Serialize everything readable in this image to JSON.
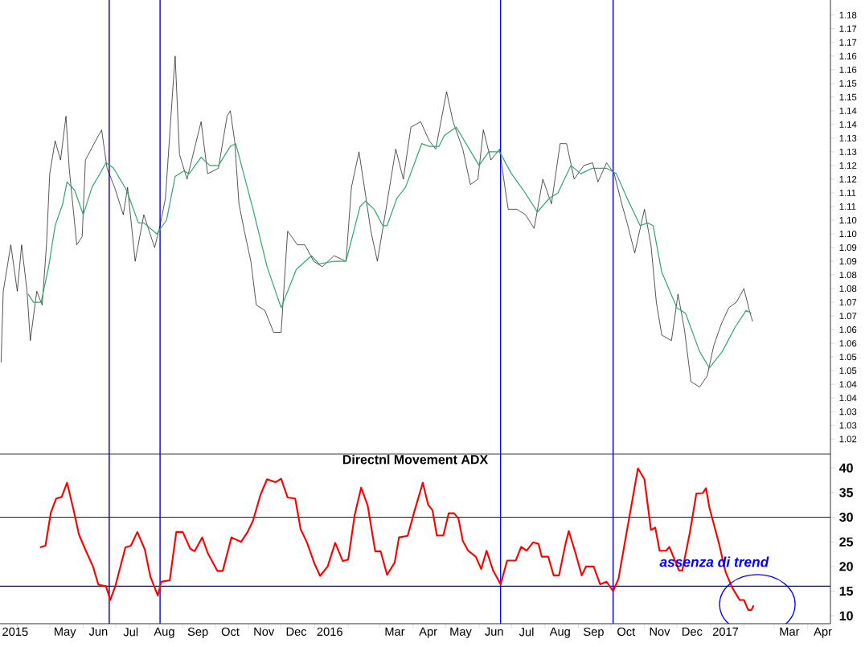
{
  "chart_data": [
    {
      "type": "line",
      "xlim": [
        "2015-03-16",
        "2017-04-22"
      ],
      "ylim": [
        1.0195,
        1.1855
      ],
      "tick_labels": "y",
      "yticks": [
        {
          "value": 1.18,
          "label": "1.18"
        },
        {
          "value": 1.175,
          "label": "1.17"
        },
        {
          "value": 1.17,
          "label": "1.17"
        },
        {
          "value": 1.165,
          "label": "1.16"
        },
        {
          "value": 1.16,
          "label": "1.16"
        },
        {
          "value": 1.155,
          "label": "1.15"
        },
        {
          "value": 1.15,
          "label": "1.15"
        },
        {
          "value": 1.145,
          "label": "1.14"
        },
        {
          "value": 1.14,
          "label": "1.14"
        },
        {
          "value": 1.135,
          "label": "1.13"
        },
        {
          "value": 1.13,
          "label": "1.13"
        },
        {
          "value": 1.125,
          "label": "1.12"
        },
        {
          "value": 1.12,
          "label": "1.12"
        },
        {
          "value": 1.115,
          "label": "1.11"
        },
        {
          "value": 1.11,
          "label": "1.11"
        },
        {
          "value": 1.105,
          "label": "1.10"
        },
        {
          "value": 1.1,
          "label": "1.10"
        },
        {
          "value": 1.095,
          "label": "1.09"
        },
        {
          "value": 1.09,
          "label": "1.09"
        },
        {
          "value": 1.085,
          "label": "1.08"
        },
        {
          "value": 1.08,
          "label": "1.08"
        },
        {
          "value": 1.075,
          "label": "1.07"
        },
        {
          "value": 1.07,
          "label": "1.07"
        },
        {
          "value": 1.065,
          "label": "1.06"
        },
        {
          "value": 1.06,
          "label": "1.06"
        },
        {
          "value": 1.055,
          "label": "1.05"
        },
        {
          "value": 1.05,
          "label": "1.05"
        },
        {
          "value": 1.045,
          "label": "1.04"
        },
        {
          "value": 1.04,
          "label": "1.04"
        },
        {
          "value": 1.035,
          "label": "1.03"
        },
        {
          "value": 1.03,
          "label": "1.03"
        },
        {
          "value": 1.025,
          "label": "1.02"
        }
      ],
      "series": [
        {
          "color": "#000000",
          "x": [
            "2015-03-17",
            "2015-03-19",
            "2015-03-26",
            "2015-04-01",
            "2015-04-05",
            "2015-04-10",
            "2015-04-13",
            "2015-04-19",
            "2015-04-24",
            "2015-04-28",
            "2015-05-01",
            "2015-05-06",
            "2015-05-11",
            "2015-05-16",
            "2015-05-19",
            "2015-05-26",
            "2015-05-31",
            "2015-06-03",
            "2015-06-11",
            "2015-06-18",
            "2015-06-23",
            "2015-06-30",
            "2015-07-08",
            "2015-07-12",
            "2015-07-19",
            "2015-07-27",
            "2015-08-01",
            "2015-08-06",
            "2015-08-11",
            "2015-08-16",
            "2015-08-23",
            "2015-08-25",
            "2015-08-29",
            "2015-09-05",
            "2015-09-13",
            "2015-09-18",
            "2015-09-24",
            "2015-10-04",
            "2015-10-12",
            "2015-10-15",
            "2015-10-19",
            "2015-10-23",
            "2015-10-28",
            "2015-11-03",
            "2015-11-08",
            "2015-11-16",
            "2015-11-24",
            "2015-12-01",
            "2015-12-07",
            "2015-12-16",
            "2015-12-23",
            "2015-12-31",
            "2016-01-08",
            "2016-01-19",
            "2016-01-30",
            "2016-02-04",
            "2016-02-11",
            "2016-02-16",
            "2016-02-22",
            "2016-02-28",
            "2016-03-07",
            "2016-03-16",
            "2016-03-23",
            "2016-03-30",
            "2016-04-08",
            "2016-04-16",
            "2016-04-22",
            "2016-05-02",
            "2016-05-08",
            "2016-05-17",
            "2016-05-24",
            "2016-05-31",
            "2016-06-05",
            "2016-06-12",
            "2016-06-20",
            "2016-06-25",
            "2016-06-28",
            "2016-07-06",
            "2016-07-14",
            "2016-07-22",
            "2016-07-30",
            "2016-08-07",
            "2016-08-15",
            "2016-08-21",
            "2016-08-28",
            "2016-09-06",
            "2016-09-14",
            "2016-09-19",
            "2016-09-27",
            "2016-10-04",
            "2016-10-11",
            "2016-10-16",
            "2016-10-23",
            "2016-11-01",
            "2016-11-07",
            "2016-11-12",
            "2016-11-17",
            "2016-11-26",
            "2016-12-02",
            "2016-12-08",
            "2016-12-14",
            "2016-12-22",
            "2016-12-29",
            "2017-01-04",
            "2017-01-11",
            "2017-01-18",
            "2017-01-25",
            "2017-02-01",
            "2017-02-06",
            "2017-02-09"
          ],
          "values": [
            1.053,
            1.079,
            1.096,
            1.079,
            1.096,
            1.079,
            1.061,
            1.079,
            1.074,
            1.096,
            1.122,
            1.134,
            1.127,
            1.143,
            1.124,
            1.096,
            1.099,
            1.127,
            1.133,
            1.138,
            1.124,
            1.117,
            1.107,
            1.117,
            1.09,
            1.107,
            1.101,
            1.095,
            1.103,
            1.113,
            1.154,
            1.165,
            1.129,
            1.12,
            1.133,
            1.141,
            1.122,
            1.124,
            1.143,
            1.145,
            1.134,
            1.111,
            1.101,
            1.09,
            1.074,
            1.072,
            1.064,
            1.064,
            1.101,
            1.096,
            1.096,
            1.09,
            1.088,
            1.092,
            1.09,
            1.117,
            1.13,
            1.117,
            1.101,
            1.09,
            1.109,
            1.131,
            1.12,
            1.139,
            1.141,
            1.134,
            1.131,
            1.152,
            1.141,
            1.131,
            1.118,
            1.12,
            1.138,
            1.127,
            1.131,
            1.117,
            1.109,
            1.109,
            1.107,
            1.102,
            1.12,
            1.111,
            1.133,
            1.133,
            1.12,
            1.125,
            1.126,
            1.119,
            1.126,
            1.122,
            1.111,
            1.104,
            1.093,
            1.109,
            1.096,
            1.075,
            1.063,
            1.061,
            1.078,
            1.065,
            1.046,
            1.044,
            1.048,
            1.059,
            1.067,
            1.073,
            1.075,
            1.08,
            1.072,
            1.068
          ]
        },
        {
          "color": "#2ea86c",
          "x": [
            "2015-04-11",
            "2015-04-16",
            "2015-04-23",
            "2015-04-30",
            "2015-05-06",
            "2015-05-13",
            "2015-05-17",
            "2015-05-24",
            "2015-06-01",
            "2015-06-09",
            "2015-06-15",
            "2015-06-22",
            "2015-06-29",
            "2015-07-11",
            "2015-07-22",
            "2015-07-27",
            "2015-08-08",
            "2015-08-17",
            "2015-08-25",
            "2015-09-02",
            "2015-09-07",
            "2015-09-18",
            "2015-09-26",
            "2015-10-04",
            "2015-10-15",
            "2015-10-20",
            "2015-11-05",
            "2015-11-18",
            "2015-12-01",
            "2015-12-15",
            "2015-12-29",
            "2016-01-05",
            "2016-01-19",
            "2016-01-30",
            "2016-02-12",
            "2016-02-17",
            "2016-02-25",
            "2016-03-04",
            "2016-03-08",
            "2016-03-17",
            "2016-03-25",
            "2016-04-09",
            "2016-04-16",
            "2016-04-25",
            "2016-04-30",
            "2016-05-11",
            "2016-06-01",
            "2016-06-10",
            "2016-06-20",
            "2016-07-01",
            "2016-07-12",
            "2016-07-25",
            "2016-08-05",
            "2016-08-13",
            "2016-08-25",
            "2016-09-03",
            "2016-09-14",
            "2016-09-27",
            "2016-10-06",
            "2016-10-16",
            "2016-10-28",
            "2016-11-04",
            "2016-11-09",
            "2016-11-17",
            "2016-12-01",
            "2016-12-09",
            "2016-12-22",
            "2016-12-31",
            "2017-01-12",
            "2017-01-24",
            "2017-02-03",
            "2017-02-08"
          ],
          "values": [
            1.078,
            1.075,
            1.075,
            1.088,
            1.103,
            1.111,
            1.119,
            1.116,
            1.107,
            1.117,
            1.121,
            1.126,
            1.124,
            1.116,
            1.104,
            1.104,
            1.1,
            1.105,
            1.121,
            1.123,
            1.122,
            1.128,
            1.125,
            1.125,
            1.132,
            1.133,
            1.109,
            1.088,
            1.073,
            1.087,
            1.092,
            1.089,
            1.09,
            1.09,
            1.11,
            1.112,
            1.109,
            1.103,
            1.103,
            1.113,
            1.117,
            1.133,
            1.132,
            1.132,
            1.136,
            1.139,
            1.125,
            1.13,
            1.13,
            1.122,
            1.116,
            1.108,
            1.113,
            1.115,
            1.125,
            1.122,
            1.124,
            1.124,
            1.122,
            1.113,
            1.103,
            1.104,
            1.103,
            1.086,
            1.073,
            1.071,
            1.057,
            1.051,
            1.057,
            1.066,
            1.072,
            1.071
          ]
        }
      ],
      "ref_lines": [
        {
          "axis": "x",
          "value": "2015-06-25",
          "color": "#0000ff"
        },
        {
          "axis": "x",
          "value": "2015-08-11",
          "color": "#0000ff"
        },
        {
          "axis": "x",
          "value": "2016-06-21",
          "color": "#0000ff"
        },
        {
          "axis": "x",
          "value": "2016-10-03",
          "color": "#0000ff"
        }
      ]
    },
    {
      "type": "line",
      "title": "Directnl Movement ADX",
      "xlim": [
        "2015-03-16",
        "2017-04-22"
      ],
      "ylim": [
        8.4,
        42.8
      ],
      "yticks": [
        10,
        15,
        20,
        25,
        30,
        35,
        40
      ],
      "xticks": [
        {
          "value": "2015-03-30",
          "label": "2015"
        },
        {
          "value": "2015-05-15",
          "label": "May"
        },
        {
          "value": "2015-06-15",
          "label": "Jun"
        },
        {
          "value": "2015-07-15",
          "label": "Jul"
        },
        {
          "value": "2015-08-15",
          "label": "Aug"
        },
        {
          "value": "2015-09-15",
          "label": "Sep"
        },
        {
          "value": "2015-10-15",
          "label": "Oct"
        },
        {
          "value": "2015-11-15",
          "label": "Nov"
        },
        {
          "value": "2015-12-15",
          "label": "Dec"
        },
        {
          "value": "2016-01-15",
          "label": "2016"
        },
        {
          "value": "2016-03-15",
          "label": "Mar"
        },
        {
          "value": "2016-04-15",
          "label": "Apr"
        },
        {
          "value": "2016-05-15",
          "label": "May"
        },
        {
          "value": "2016-06-15",
          "label": "Jun"
        },
        {
          "value": "2016-07-15",
          "label": "Jul"
        },
        {
          "value": "2016-08-15",
          "label": "Aug"
        },
        {
          "value": "2016-09-15",
          "label": "Sep"
        },
        {
          "value": "2016-10-15",
          "label": "Oct"
        },
        {
          "value": "2016-11-15",
          "label": "Nov"
        },
        {
          "value": "2016-12-15",
          "label": "Dec"
        },
        {
          "value": "2017-01-15",
          "label": "2017"
        },
        {
          "value": "2017-03-15",
          "label": "Mar"
        },
        {
          "value": "2017-04-15",
          "label": "Apr"
        },
        {
          "value": "2015-04-01",
          "label": null
        },
        {
          "value": "2015-05-01",
          "label": null
        },
        {
          "value": "2015-06-01",
          "label": null
        },
        {
          "value": "2015-07-01",
          "label": null
        },
        {
          "value": "2015-08-01",
          "label": null
        },
        {
          "value": "2015-09-01",
          "label": null
        },
        {
          "value": "2015-10-01",
          "label": null
        },
        {
          "value": "2015-11-01",
          "label": null
        },
        {
          "value": "2015-12-01",
          "label": null
        },
        {
          "value": "2016-01-01",
          "label": null
        },
        {
          "value": "2016-02-01",
          "label": null
        },
        {
          "value": "2016-03-01",
          "label": null
        },
        {
          "value": "2016-04-01",
          "label": null
        },
        {
          "value": "2016-05-01",
          "label": null
        },
        {
          "value": "2016-06-01",
          "label": null
        },
        {
          "value": "2016-07-01",
          "label": null
        },
        {
          "value": "2016-08-01",
          "label": null
        },
        {
          "value": "2016-09-01",
          "label": null
        },
        {
          "value": "2016-10-01",
          "label": null
        },
        {
          "value": "2016-11-01",
          "label": null
        },
        {
          "value": "2016-12-01",
          "label": null
        },
        {
          "value": "2017-01-01",
          "label": null
        },
        {
          "value": "2017-02-01",
          "label": null
        },
        {
          "value": "2017-03-01",
          "label": null
        },
        {
          "value": "2017-04-01",
          "label": null
        }
      ],
      "series": [
        {
          "color": "#ff0000",
          "x": [
            "2015-04-22",
            "2015-04-27",
            "2015-05-02",
            "2015-05-07",
            "2015-05-12",
            "2015-05-17",
            "2015-05-23",
            "2015-05-28",
            "2015-06-03",
            "2015-06-10",
            "2015-06-15",
            "2015-06-22",
            "2015-06-26",
            "2015-07-01",
            "2015-07-10",
            "2015-07-15",
            "2015-07-21",
            "2015-07-28",
            "2015-08-02",
            "2015-08-09",
            "2015-08-12",
            "2015-08-20",
            "2015-08-26",
            "2015-09-01",
            "2015-09-08",
            "2015-09-12",
            "2015-09-19",
            "2015-09-24",
            "2015-10-03",
            "2015-10-08",
            "2015-10-16",
            "2015-10-25",
            "2015-10-31",
            "2015-11-05",
            "2015-11-12",
            "2015-11-18",
            "2015-11-26",
            "2015-12-01",
            "2015-12-07",
            "2015-12-14",
            "2015-12-19",
            "2015-12-25",
            "2016-01-01",
            "2016-01-06",
            "2016-01-13",
            "2016-01-20",
            "2016-01-27",
            "2016-02-01",
            "2016-02-07",
            "2016-02-13",
            "2016-02-19",
            "2016-02-26",
            "2016-03-02",
            "2016-03-08",
            "2016-03-15",
            "2016-03-19",
            "2016-03-27",
            "2016-04-02",
            "2016-04-10",
            "2016-04-15",
            "2016-04-19",
            "2016-04-23",
            "2016-04-29",
            "2016-05-04",
            "2016-05-09",
            "2016-05-13",
            "2016-05-17",
            "2016-05-22",
            "2016-05-29",
            "2016-06-03",
            "2016-06-08",
            "2016-06-14",
            "2016-06-21",
            "2016-06-27",
            "2016-07-05",
            "2016-07-10",
            "2016-07-15",
            "2016-07-21",
            "2016-07-26",
            "2016-07-29",
            "2016-08-04",
            "2016-08-09",
            "2016-08-14",
            "2016-08-20",
            "2016-08-23",
            "2016-08-29",
            "2016-09-04",
            "2016-09-08",
            "2016-09-15",
            "2016-09-21",
            "2016-09-27",
            "2016-10-03",
            "2016-10-08",
            "2016-10-15",
            "2016-10-21",
            "2016-10-26",
            "2016-11-01",
            "2016-11-07",
            "2016-11-11",
            "2016-11-15",
            "2016-11-21",
            "2016-11-24",
            "2016-12-03",
            "2016-12-06",
            "2016-12-13",
            "2016-12-19",
            "2016-12-25",
            "2016-12-28",
            "2016-12-31",
            "2017-01-09",
            "2017-01-15",
            "2017-01-21",
            "2017-01-28",
            "2017-02-01",
            "2017-02-05",
            "2017-02-08",
            "2017-02-10"
          ],
          "values": [
            23.9,
            24.2,
            30.9,
            33.8,
            34.1,
            37.0,
            31.5,
            26.5,
            23.4,
            20.0,
            16.3,
            16.0,
            13.2,
            16.3,
            23.9,
            24.2,
            27.0,
            23.4,
            18.0,
            14.1,
            16.9,
            17.2,
            27.0,
            27.0,
            23.6,
            23.1,
            25.9,
            22.8,
            19.1,
            19.1,
            25.9,
            25.0,
            27.0,
            29.3,
            34.6,
            37.7,
            37.1,
            37.8,
            34.0,
            33.8,
            27.6,
            24.8,
            20.5,
            18.1,
            20.0,
            24.8,
            21.1,
            21.4,
            30.4,
            36.0,
            32.4,
            23.1,
            23.1,
            18.3,
            20.8,
            25.9,
            26.2,
            31.0,
            37.0,
            32.5,
            31.4,
            26.3,
            26.3,
            30.8,
            30.8,
            29.7,
            25.2,
            23.2,
            22.0,
            19.5,
            23.2,
            19.2,
            16.4,
            21.2,
            21.2,
            24.0,
            23.2,
            24.9,
            24.6,
            22.0,
            22.0,
            18.2,
            18.2,
            24.6,
            27.2,
            22.9,
            18.2,
            20.0,
            20.0,
            16.4,
            16.9,
            15.0,
            17.5,
            26.3,
            33.7,
            39.9,
            37.7,
            27.4,
            27.9,
            23.2,
            23.2,
            24.0,
            19.2,
            19.2,
            26.9,
            34.8,
            34.9,
            35.9,
            32.0,
            24.6,
            18.9,
            15.8,
            13.2,
            13.2,
            11.2,
            11.2,
            12.1
          ]
        }
      ],
      "ref_lines": [
        {
          "axis": "x",
          "value": "2015-06-25",
          "color": "#0000ff"
        },
        {
          "axis": "x",
          "value": "2015-08-11",
          "color": "#0000ff"
        },
        {
          "axis": "x",
          "value": "2016-06-21",
          "color": "#0000ff"
        },
        {
          "axis": "x",
          "value": "2016-10-03",
          "color": "#0000ff"
        },
        {
          "axis": "y",
          "value": 30,
          "color": "#0000ff"
        },
        {
          "axis": "y",
          "value": 16,
          "color": "#0000ff"
        }
      ],
      "annotations": [
        "assenza di trend"
      ]
    }
  ]
}
